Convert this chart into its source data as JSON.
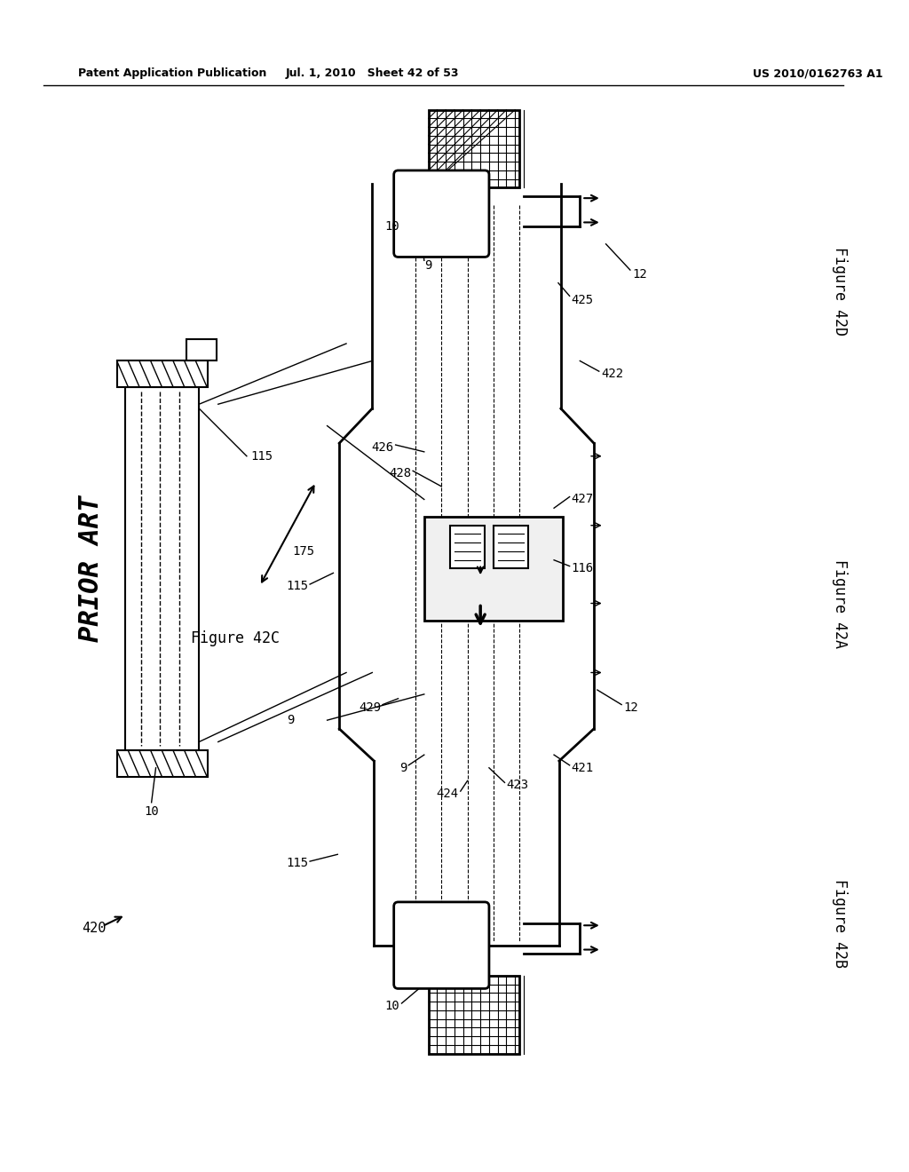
{
  "title_left": "Patent Application Publication",
  "title_center": "Jul. 1, 2010   Sheet 42 of 53",
  "title_right": "US 2010/0162763 A1",
  "bg_color": "#ffffff",
  "line_color": "#000000",
  "prior_art_text": "PRIOR ART",
  "fig_42a": "Figure 42A",
  "fig_42b": "Figure 42B",
  "fig_42c": "Figure 42C",
  "fig_42d": "Figure 42D",
  "label_420": "420",
  "label_10": "10",
  "label_9": "9",
  "label_12": "12",
  "label_115": "115",
  "label_116": "116",
  "label_175": "175",
  "label_421": "421",
  "label_422": "422",
  "label_423": "423",
  "label_424": "424",
  "label_425": "425",
  "label_426": "426",
  "label_427": "427",
  "label_428": "428",
  "label_429": "429"
}
